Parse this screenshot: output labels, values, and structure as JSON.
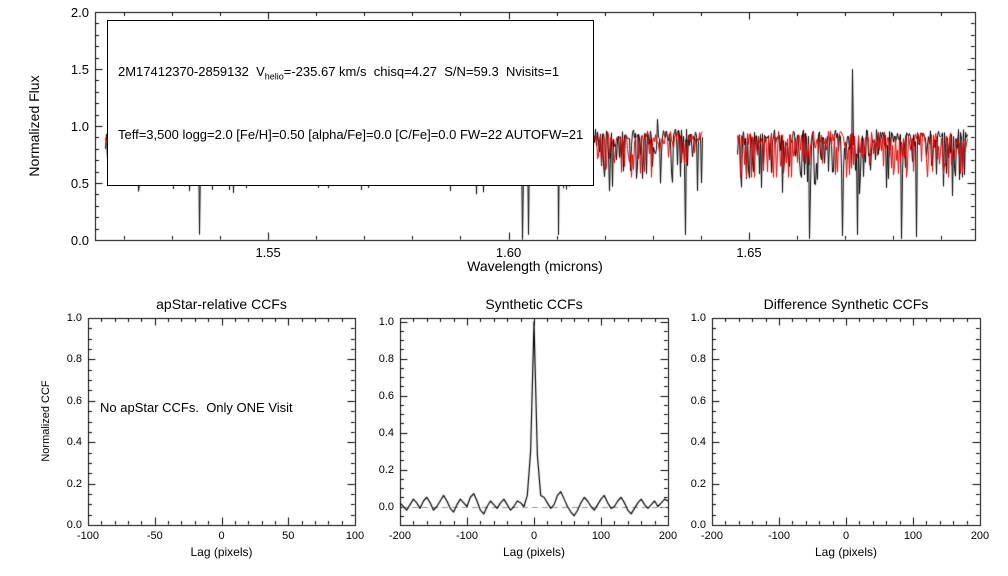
{
  "window": {
    "background": "#ffffff"
  },
  "top_panel": {
    "annotation": {
      "star_id": "2M17412370-2859132",
      "v_prefix": "V",
      "v_sub": "helio",
      "v_rest": "=-235.67 km/s  chisq=4.27  S/N=59.3  Nvisits=1",
      "line2": "Teff=3,500 logg=2.0 [Fe/H]=0.50 [alpha/Fe]=0.0 [C/Fe]=0.0 FW=22 AUTOFW=21"
    }
  },
  "chart_data": [
    {
      "id": "spectrum",
      "type": "line",
      "title": "",
      "xlabel": "Wavelength (microns)",
      "ylabel": "Normalized Flux",
      "xlim": [
        1.514,
        1.697
      ],
      "ylim": [
        0.0,
        2.0
      ],
      "xticks": [
        1.55,
        1.6,
        1.65
      ],
      "xtick_labels": [
        "1.55",
        "1.60",
        "1.65"
      ],
      "yticks": [
        0.0,
        0.5,
        1.0,
        1.5,
        2.0
      ],
      "ytick_labels": [
        "0.0",
        "0.5",
        "1.0",
        "1.5",
        "2.0"
      ],
      "x_minor": 0.01,
      "y_minor": 0.1,
      "grid": false,
      "segments_microns": [
        [
          1.516,
          1.5802
        ],
        [
          1.5856,
          1.6404
        ],
        [
          1.6473,
          1.6955
        ]
      ],
      "series": [
        {
          "name": "observed spectrum",
          "color": "#000000",
          "continuum": 0.93,
          "noise": 0.09,
          "max_absorption_depth": 0.5,
          "spike_height_range": [
            1.05,
            1.75
          ],
          "deep_lines_reach": 0.0
        },
        {
          "name": "best-fit synthetic spectrum",
          "color": "#dd0000",
          "continuum": 0.92,
          "noise": 0.08,
          "max_absorption_depth": 0.42,
          "min_value": 0.55
        }
      ],
      "seed": 7
    },
    {
      "id": "apstar_ccf",
      "type": "line",
      "title": "apStar-relative CCFs",
      "xlabel": "Lag (pixels)",
      "ylabel": "Normalized CCF",
      "xlim": [
        -100,
        100
      ],
      "ylim": [
        0.0,
        1.0
      ],
      "xticks": [
        -100,
        -50,
        0,
        50,
        100
      ],
      "xtick_labels": [
        "-100",
        "-50",
        "0",
        "50",
        "100"
      ],
      "yticks": [
        0.0,
        0.2,
        0.4,
        0.6,
        0.8,
        1.0
      ],
      "ytick_labels": [
        "0.0",
        "0.2",
        "0.4",
        "0.6",
        "0.8",
        "1.0"
      ],
      "x_minor": 10,
      "y_minor": 0.05,
      "grid": false,
      "annotation": "No apStar CCFs.  Only ONE Visit",
      "series": []
    },
    {
      "id": "synthetic_ccf",
      "type": "line",
      "title": "Synthetic CCFs",
      "xlabel": "Lag (pixels)",
      "ylabel": "",
      "xlim": [
        -200,
        200
      ],
      "ylim": [
        -0.1,
        1.02
      ],
      "xticks": [
        -200,
        -100,
        0,
        100,
        200
      ],
      "xtick_labels": [
        "-200",
        "-100",
        "0",
        "100",
        "200"
      ],
      "yticks": [
        0.0,
        0.2,
        0.4,
        0.6,
        0.8,
        1.0
      ],
      "ytick_labels": [
        "0.0",
        "0.2",
        "0.4",
        "0.6",
        "0.8",
        "1.0"
      ],
      "x_minor": 20,
      "y_minor": 0.05,
      "grid": false,
      "zero_line": {
        "y": 0.0,
        "style": "dashed",
        "color": "#999999"
      },
      "series": [
        {
          "name": "synthetic CCF",
          "color": "#000000",
          "peak_lag": 0,
          "peak_value": 1.0,
          "x": [
            -200,
            -195,
            -190,
            -185,
            -180,
            -175,
            -170,
            -165,
            -160,
            -155,
            -150,
            -145,
            -140,
            -135,
            -130,
            -125,
            -120,
            -115,
            -110,
            -105,
            -100,
            -95,
            -90,
            -85,
            -80,
            -75,
            -70,
            -65,
            -60,
            -55,
            -50,
            -45,
            -40,
            -35,
            -30,
            -25,
            -20,
            -15,
            -10,
            -5,
            0,
            5,
            10,
            15,
            20,
            25,
            30,
            35,
            40,
            45,
            50,
            55,
            60,
            65,
            70,
            75,
            80,
            85,
            90,
            95,
            100,
            105,
            110,
            115,
            120,
            125,
            130,
            135,
            140,
            145,
            150,
            155,
            160,
            165,
            170,
            175,
            180,
            185,
            190,
            195,
            200
          ],
          "y": [
            0.02,
            0.0,
            -0.02,
            0.01,
            0.04,
            0.02,
            -0.01,
            0.03,
            0.05,
            0.02,
            -0.02,
            0.0,
            0.03,
            0.06,
            0.03,
            -0.01,
            -0.03,
            0.01,
            0.04,
            0.02,
            0.0,
            0.05,
            0.07,
            0.03,
            -0.02,
            -0.04,
            0.0,
            0.03,
            0.01,
            -0.01,
            0.02,
            0.04,
            0.01,
            -0.02,
            0.0,
            0.03,
            0.02,
            0.0,
            0.06,
            0.3,
            1.0,
            0.28,
            0.06,
            0.05,
            0.02,
            -0.01,
            0.01,
            0.06,
            0.08,
            0.04,
            0.0,
            -0.03,
            -0.05,
            -0.02,
            0.02,
            0.05,
            0.03,
            0.0,
            -0.02,
            0.01,
            0.04,
            0.06,
            0.02,
            -0.01,
            0.0,
            0.03,
            0.05,
            0.02,
            -0.02,
            -0.04,
            -0.01,
            0.02,
            0.04,
            0.01,
            -0.01,
            0.01,
            0.03,
            0.0,
            0.02,
            0.04,
            0.03
          ]
        }
      ]
    },
    {
      "id": "difference_synthetic_ccf",
      "type": "line",
      "title": "Difference Synthetic CCFs",
      "xlabel": "Lag (pixels)",
      "ylabel": "",
      "xlim": [
        -200,
        200
      ],
      "ylim": [
        0.0,
        1.0
      ],
      "xticks": [
        -200,
        -100,
        0,
        100,
        200
      ],
      "xtick_labels": [
        "-200",
        "-100",
        "0",
        "100",
        "200"
      ],
      "yticks": [
        0.0,
        0.2,
        0.4,
        0.6,
        0.8,
        1.0
      ],
      "ytick_labels": [
        "0.0",
        "0.2",
        "0.4",
        "0.6",
        "0.8",
        "1.0"
      ],
      "x_minor": 20,
      "y_minor": 0.05,
      "grid": false,
      "series": []
    }
  ]
}
